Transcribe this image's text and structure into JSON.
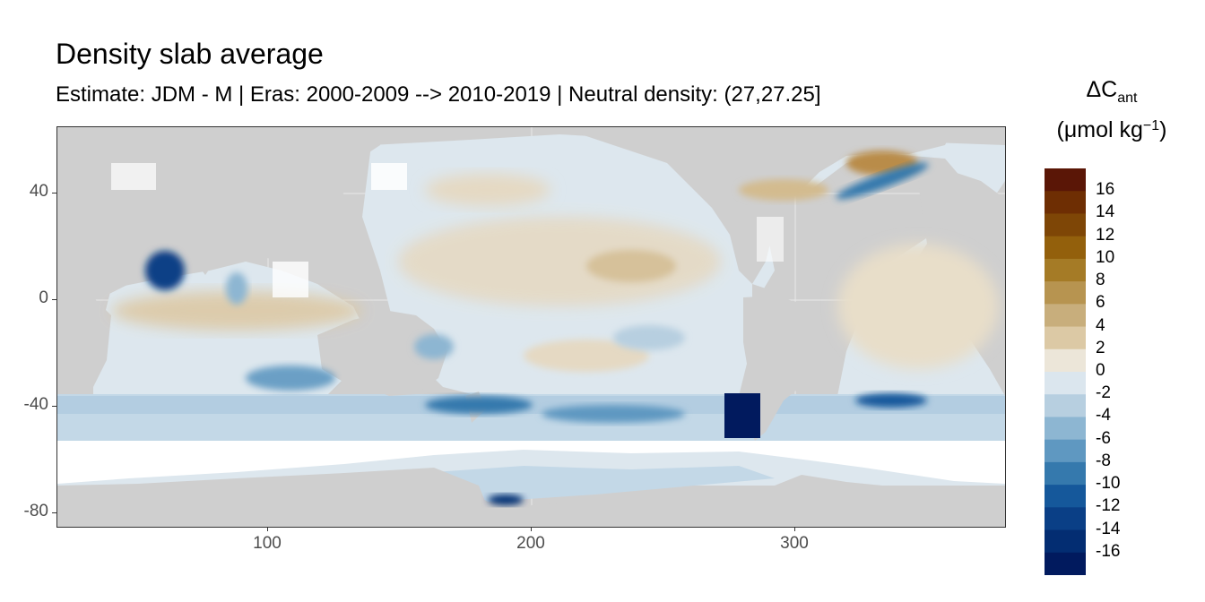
{
  "title": "Density slab average",
  "subtitle": "Estimate: JDM - M | Eras: 2000-2009 --> 2010-2019 | Neutral density: (27,27.25]",
  "legend": {
    "title_main": "ΔC",
    "title_sub": "ant",
    "title_unit_open": "(μmol kg",
    "title_unit_sup": "−1",
    "title_unit_close": ")",
    "labels": [
      "16",
      "14",
      "12",
      "10",
      "8",
      "6",
      "4",
      "2",
      "0",
      "-2",
      "-4",
      "-6",
      "-8",
      "-10",
      "-12",
      "-14",
      "-16"
    ],
    "colors": [
      "#5a1606",
      "#6e2e03",
      "#7e4606",
      "#93600c",
      "#a57b26",
      "#b79450",
      "#c8ae7c",
      "#dcc9a5",
      "#ece6d9",
      "#dbe6ee",
      "#b7cfe0",
      "#8db6d2",
      "#5f98c1",
      "#3579ad",
      "#15589b",
      "#0a3f86",
      "#032d72",
      "#011a5e"
    ]
  },
  "axes": {
    "x_ticks": [
      "100",
      "200",
      "300"
    ],
    "y_ticks": [
      "40",
      "0",
      "-40",
      "-80"
    ]
  },
  "colors": {
    "land": "#cfcfcf",
    "ocean_missing": "#ffffff"
  },
  "map_data": {
    "type": "raster-map",
    "x_range": [
      20,
      380
    ],
    "y_range": [
      -85,
      64
    ],
    "x_tick_values": [
      100,
      200,
      300
    ],
    "y_tick_values": [
      40,
      0,
      -40,
      -80
    ],
    "legend_placement": "right"
  }
}
